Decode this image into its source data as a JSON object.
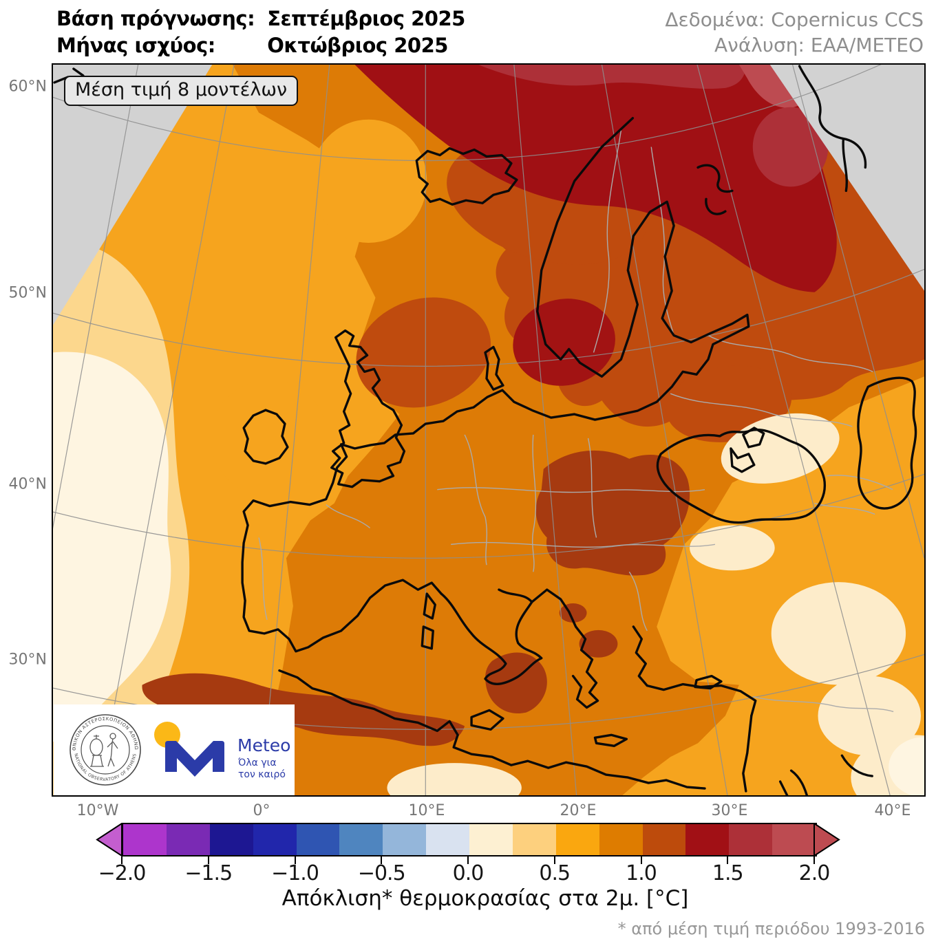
{
  "header": {
    "basis_label": "Βάση πρόγνωσης:",
    "basis_value": "Σεπτέμβριος 2025",
    "valid_label": "Μήνας ισχύος:",
    "valid_value": "Οκτώβριος 2025",
    "data_source": "Δεδομένα: Copernicus CCS",
    "analysis": "Ανάλυση: ΕΑΑ/ΜΕΤΕΟ"
  },
  "map": {
    "annotation": "Μέση τιμή 8 μοντέλων",
    "lat_labels": [
      "60°N",
      "50°N",
      "40°N",
      "30°N"
    ],
    "lon_labels": [
      "10°W",
      "0°",
      "10°E",
      "20°E",
      "30°E",
      "40°E"
    ],
    "palette": {
      "out_of_domain_gray": "#d2d2d2",
      "anomaly_0_to_025": "#fdeccа",
      "anomaly_025_to_05": "#fcd78d",
      "anomaly_05_to_075": "#f6a41e",
      "anomaly_075_to_1": "#dd7b06",
      "anomaly_1_to_125": "#bf4b0e",
      "anomaly_125_to_15": "#a01014",
      "anomaly_15_to_175": "#ad3038",
      "anomaly_175_to_2": "#bd4b51"
    }
  },
  "legend": {
    "title": "Απόκλιση* θερμοκρασίας στα 2μ. [°C]",
    "footnote": "* από μέση τιμή περιόδου 1993-2016",
    "ticks": [
      "−2.0",
      "−1.5",
      "−1.0",
      "−0.5",
      "0.0",
      "0.5",
      "1.0",
      "1.5",
      "2.0"
    ],
    "colors": [
      "#ad35cc",
      "#7a2ab4",
      "#1d1792",
      "#2126ab",
      "#2f55b2",
      "#4f85bf",
      "#94b6da",
      "#d9e2f0",
      "#fdf0d2",
      "#fdd07e",
      "#faa70f",
      "#de7c00",
      "#bd4b0c",
      "#a11015",
      "#ad3038",
      "#bd4b51"
    ],
    "arrow_left_color": "#c45ecf",
    "arrow_right_color": "#bd4b51",
    "unit": "°C"
  },
  "logos": {
    "observatory_text_top": "ΕΘΝΙΚΟΝ ΑΣΤΕΡΟΣΚΟΠΕΙΟΝ ΑΘΗΝΩΝ",
    "observatory_text_bottom": "NATIONAL OBSERVATORY OF ATHENS",
    "meteo_name": "Meteo",
    "meteo_tagline_1": "Όλα για",
    "meteo_tagline_2": "τον καιρό",
    "meteo_blue": "#2b3ba8",
    "meteo_yellow": "#fbb817"
  }
}
